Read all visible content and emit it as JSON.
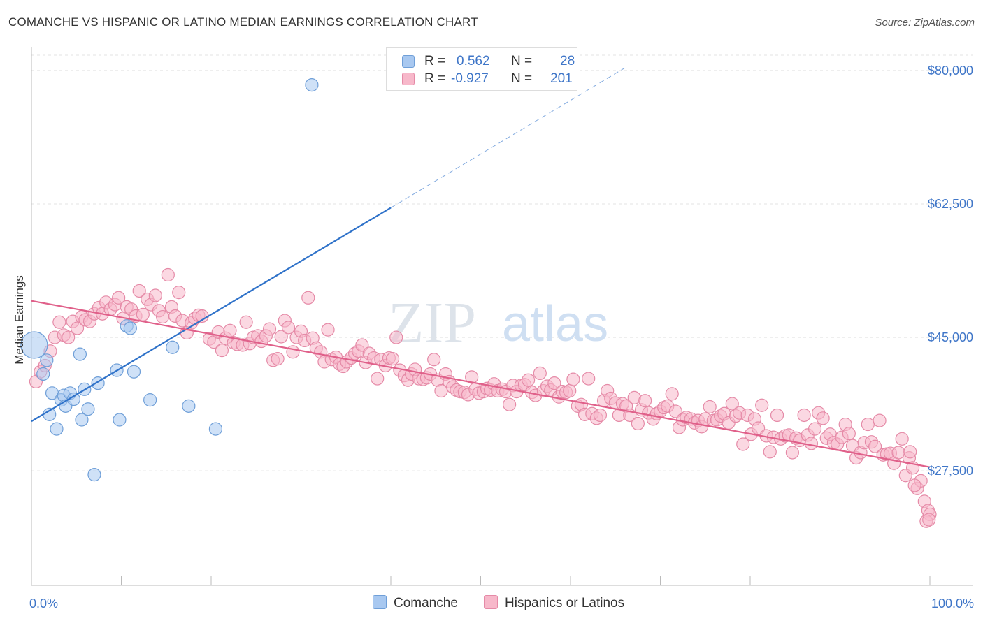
{
  "title": "COMANCHE VS HISPANIC OR LATINO MEDIAN EARNINGS CORRELATION CHART",
  "source": "Source: ZipAtlas.com",
  "watermark": {
    "zip": "ZIP",
    "atlas": "atlas"
  },
  "legend": {
    "rows": [
      {
        "r_label": "R =",
        "r_value": "0.562",
        "n_label": "N =",
        "n_value": "28",
        "color": "#a8c8f0",
        "border": "#6f9fd8"
      },
      {
        "r_label": "R =",
        "r_value": "-0.927",
        "n_label": "N =",
        "n_value": "201",
        "color": "#f7b8ca",
        "border": "#e58aa7"
      }
    ]
  },
  "bottom_legend": [
    {
      "label": "Comanche",
      "color": "#a8c8f0",
      "border": "#6f9fd8"
    },
    {
      "label": "Hispanics or Latinos",
      "color": "#f7b8ca",
      "border": "#e58aa7"
    }
  ],
  "chart_data": {
    "type": "scatter",
    "ylabel": "Median Earnings",
    "xlim": [
      0,
      100
    ],
    "ylim": [
      12500,
      82000
    ],
    "x_tick_labels": [
      {
        "value": 0,
        "label": "0.0%"
      },
      {
        "value": 100,
        "label": "100.0%"
      }
    ],
    "y_ticks": [
      {
        "value": 27500,
        "label": "$27,500"
      },
      {
        "value": 45000,
        "label": "$45,000"
      },
      {
        "value": 62500,
        "label": "$62,500"
      },
      {
        "value": 80000,
        "label": "$80,000"
      }
    ],
    "grid": true,
    "series": [
      {
        "name": "Comanche",
        "color": "#a8c8f0",
        "stroke": "#6f9fd8",
        "line_color": "#2f72c9",
        "trend": {
          "x0": 0,
          "y0": 34000,
          "x1": 40,
          "y1": 62000,
          "dashed_to_x": 66,
          "dashed_to_y": 80300
        },
        "points": [
          [
            0.3,
            44000
          ],
          [
            1.3,
            40200
          ],
          [
            1.7,
            42000
          ],
          [
            2.0,
            34900
          ],
          [
            2.3,
            37700
          ],
          [
            2.8,
            33000
          ],
          [
            3.3,
            36800
          ],
          [
            3.6,
            37400
          ],
          [
            3.8,
            36000
          ],
          [
            4.3,
            37700
          ],
          [
            4.7,
            36900
          ],
          [
            5.4,
            42800
          ],
          [
            5.6,
            34200
          ],
          [
            5.9,
            38200
          ],
          [
            6.3,
            35600
          ],
          [
            7.0,
            27000
          ],
          [
            7.4,
            39000
          ],
          [
            9.5,
            40700
          ],
          [
            9.8,
            34200
          ],
          [
            10.6,
            46500
          ],
          [
            11.0,
            46200
          ],
          [
            11.4,
            40500
          ],
          [
            13.2,
            36800
          ],
          [
            15.7,
            43700
          ],
          [
            17.5,
            36000
          ],
          [
            20.5,
            33000
          ],
          [
            31.2,
            78100
          ]
        ]
      },
      {
        "name": "Hispanics or Latinos",
        "color": "#f7b8ca",
        "stroke": "#e58aa7",
        "line_color": "#e0608a",
        "trend": {
          "x0": 0,
          "y0": 49800,
          "x1": 100,
          "y1": 28000
        },
        "points": [
          [
            0.5,
            39200
          ],
          [
            1.0,
            40500
          ],
          [
            1.5,
            41300
          ],
          [
            2.1,
            43200
          ],
          [
            2.6,
            45000
          ],
          [
            3.1,
            47000
          ],
          [
            3.6,
            45300
          ],
          [
            4.1,
            45000
          ],
          [
            4.6,
            47100
          ],
          [
            5.1,
            46200
          ],
          [
            5.6,
            47700
          ],
          [
            6.0,
            47300
          ],
          [
            6.5,
            47100
          ],
          [
            7.0,
            48100
          ],
          [
            7.5,
            48900
          ],
          [
            7.9,
            48100
          ],
          [
            8.3,
            49600
          ],
          [
            8.8,
            48700
          ],
          [
            9.3,
            49300
          ],
          [
            9.7,
            50200
          ],
          [
            10.2,
            47500
          ],
          [
            10.6,
            49000
          ],
          [
            11.1,
            48700
          ],
          [
            11.6,
            47800
          ],
          [
            12.0,
            51100
          ],
          [
            12.4,
            48000
          ],
          [
            12.9,
            50000
          ],
          [
            13.3,
            49300
          ],
          [
            13.8,
            50500
          ],
          [
            14.2,
            48500
          ],
          [
            14.6,
            47700
          ],
          [
            15.2,
            53200
          ],
          [
            15.6,
            49000
          ],
          [
            16.0,
            47800
          ],
          [
            16.4,
            50900
          ],
          [
            16.8,
            47200
          ],
          [
            17.3,
            45600
          ],
          [
            17.8,
            46900
          ],
          [
            18.2,
            47500
          ],
          [
            18.6,
            47900
          ],
          [
            19.0,
            47800
          ],
          [
            19.8,
            44800
          ],
          [
            20.3,
            44400
          ],
          [
            20.8,
            45700
          ],
          [
            21.2,
            43300
          ],
          [
            21.6,
            44900
          ],
          [
            22.1,
            45900
          ],
          [
            22.5,
            44300
          ],
          [
            22.9,
            44100
          ],
          [
            23.5,
            44000
          ],
          [
            23.9,
            47000
          ],
          [
            24.3,
            44200
          ],
          [
            24.7,
            45000
          ],
          [
            25.2,
            45200
          ],
          [
            25.6,
            44500
          ],
          [
            26.1,
            45200
          ],
          [
            26.5,
            46100
          ],
          [
            26.9,
            42000
          ],
          [
            27.4,
            42200
          ],
          [
            27.8,
            45100
          ],
          [
            28.2,
            47200
          ],
          [
            28.6,
            46300
          ],
          [
            29.1,
            43100
          ],
          [
            29.5,
            45000
          ],
          [
            30.0,
            45800
          ],
          [
            30.4,
            44600
          ],
          [
            30.8,
            50200
          ],
          [
            31.3,
            44900
          ],
          [
            31.7,
            43600
          ],
          [
            32.2,
            43100
          ],
          [
            32.6,
            41800
          ],
          [
            33.0,
            46000
          ],
          [
            33.4,
            42100
          ],
          [
            33.9,
            42400
          ],
          [
            34.3,
            41500
          ],
          [
            34.7,
            41200
          ],
          [
            35.1,
            41800
          ],
          [
            35.6,
            42300
          ],
          [
            36.0,
            42900
          ],
          [
            36.4,
            43200
          ],
          [
            36.8,
            44000
          ],
          [
            37.2,
            41700
          ],
          [
            37.6,
            42900
          ],
          [
            38.1,
            42300
          ],
          [
            38.5,
            39600
          ],
          [
            38.9,
            42100
          ],
          [
            39.4,
            41300
          ],
          [
            39.8,
            42300
          ],
          [
            40.2,
            42200
          ],
          [
            40.6,
            45000
          ],
          [
            41.0,
            40700
          ],
          [
            41.5,
            40000
          ],
          [
            41.9,
            39400
          ],
          [
            42.3,
            40200
          ],
          [
            42.7,
            40800
          ],
          [
            43.1,
            39600
          ],
          [
            43.6,
            39500
          ],
          [
            44.0,
            39700
          ],
          [
            44.4,
            40200
          ],
          [
            44.8,
            42100
          ],
          [
            45.2,
            39400
          ],
          [
            45.6,
            38000
          ],
          [
            46.1,
            40200
          ],
          [
            46.5,
            39200
          ],
          [
            46.9,
            38500
          ],
          [
            47.3,
            38100
          ],
          [
            47.7,
            37900
          ],
          [
            48.2,
            37800
          ],
          [
            48.6,
            37500
          ],
          [
            49.0,
            39800
          ],
          [
            49.4,
            38200
          ],
          [
            49.8,
            37700
          ],
          [
            50.3,
            37900
          ],
          [
            50.7,
            38300
          ],
          [
            51.1,
            38100
          ],
          [
            51.5,
            38900
          ],
          [
            51.9,
            38000
          ],
          [
            52.4,
            38200
          ],
          [
            52.8,
            37900
          ],
          [
            53.2,
            36200
          ],
          [
            53.6,
            38700
          ],
          [
            54.0,
            37900
          ],
          [
            54.5,
            38700
          ],
          [
            54.9,
            38800
          ],
          [
            55.3,
            39400
          ],
          [
            55.7,
            37800
          ],
          [
            56.1,
            37400
          ],
          [
            56.6,
            40300
          ],
          [
            57.0,
            38000
          ],
          [
            57.4,
            38600
          ],
          [
            57.8,
            38100
          ],
          [
            58.2,
            39000
          ],
          [
            58.7,
            37200
          ],
          [
            59.1,
            37900
          ],
          [
            59.5,
            37800
          ],
          [
            59.9,
            38000
          ],
          [
            60.3,
            39500
          ],
          [
            60.8,
            36000
          ],
          [
            61.2,
            36200
          ],
          [
            61.6,
            34900
          ],
          [
            62.0,
            39600
          ],
          [
            62.4,
            35000
          ],
          [
            62.9,
            34400
          ],
          [
            63.3,
            34800
          ],
          [
            63.7,
            36700
          ],
          [
            64.1,
            38000
          ],
          [
            64.5,
            37000
          ],
          [
            65.0,
            36400
          ],
          [
            65.4,
            34800
          ],
          [
            65.8,
            36300
          ],
          [
            66.2,
            36000
          ],
          [
            66.6,
            34800
          ],
          [
            67.1,
            37100
          ],
          [
            67.5,
            33700
          ],
          [
            67.9,
            35500
          ],
          [
            68.3,
            36700
          ],
          [
            68.7,
            35100
          ],
          [
            69.2,
            34300
          ],
          [
            69.6,
            35000
          ],
          [
            70.0,
            35300
          ],
          [
            70.4,
            35800
          ],
          [
            70.8,
            36000
          ],
          [
            71.3,
            37600
          ],
          [
            71.7,
            35300
          ],
          [
            72.1,
            33200
          ],
          [
            72.5,
            34200
          ],
          [
            72.9,
            34500
          ],
          [
            73.4,
            34300
          ],
          [
            73.8,
            33800
          ],
          [
            74.2,
            34100
          ],
          [
            74.6,
            33300
          ],
          [
            75.0,
            34300
          ],
          [
            75.5,
            35900
          ],
          [
            75.9,
            34100
          ],
          [
            76.3,
            34200
          ],
          [
            76.7,
            34700
          ],
          [
            77.1,
            35000
          ],
          [
            77.6,
            33800
          ],
          [
            78.0,
            36300
          ],
          [
            78.4,
            34700
          ],
          [
            78.8,
            35100
          ],
          [
            79.2,
            31000
          ],
          [
            79.7,
            34800
          ],
          [
            80.1,
            32300
          ],
          [
            80.5,
            34300
          ],
          [
            80.9,
            33100
          ],
          [
            81.3,
            36100
          ],
          [
            81.8,
            32100
          ],
          [
            82.2,
            30000
          ],
          [
            82.6,
            31900
          ],
          [
            83.0,
            34800
          ],
          [
            83.4,
            31700
          ],
          [
            83.9,
            32100
          ],
          [
            84.3,
            32200
          ],
          [
            84.7,
            29900
          ],
          [
            85.1,
            31800
          ],
          [
            85.5,
            31500
          ],
          [
            86.0,
            34800
          ],
          [
            86.4,
            32200
          ],
          [
            86.8,
            31100
          ],
          [
            87.2,
            33000
          ],
          [
            87.6,
            35100
          ],
          [
            88.1,
            34400
          ],
          [
            88.5,
            31800
          ],
          [
            88.9,
            32300
          ],
          [
            89.3,
            31200
          ],
          [
            89.7,
            31000
          ],
          [
            90.2,
            31900
          ],
          [
            90.6,
            33600
          ],
          [
            91.0,
            32400
          ],
          [
            91.4,
            30800
          ],
          [
            91.8,
            29200
          ],
          [
            92.3,
            29900
          ],
          [
            92.7,
            31200
          ],
          [
            93.1,
            33600
          ],
          [
            93.5,
            31300
          ],
          [
            93.9,
            30700
          ],
          [
            94.4,
            34100
          ],
          [
            94.8,
            29600
          ],
          [
            95.2,
            29700
          ],
          [
            95.6,
            29800
          ],
          [
            96.0,
            28500
          ],
          [
            96.5,
            29900
          ],
          [
            96.9,
            31700
          ],
          [
            97.3,
            26900
          ],
          [
            97.7,
            29200
          ],
          [
            98.1,
            27900
          ],
          [
            98.6,
            25200
          ],
          [
            99.0,
            26200
          ],
          [
            99.4,
            23500
          ],
          [
            99.8,
            22300
          ],
          [
            100.0,
            21800
          ],
          [
            99.6,
            20900
          ],
          [
            99.9,
            21100
          ],
          [
            98.3,
            25600
          ],
          [
            97.8,
            30000
          ]
        ]
      }
    ]
  }
}
